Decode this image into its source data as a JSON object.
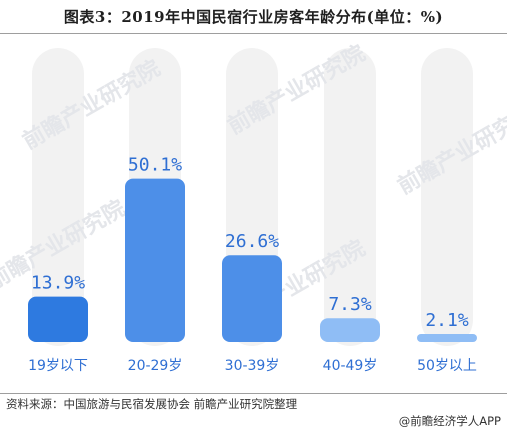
{
  "title": "图表3：2019年中国民宿行业房客年龄分布(单位：%)",
  "source_label": "资料来源：中国旅游与民宿发展协会 前瞻产业研究院整理",
  "brand_label": "@前瞻经济学人APP",
  "watermark_text": "前瞻产业研究院",
  "colors": {
    "track": "#f2f2f2",
    "bar_dark": "#2e7ae0",
    "bar_mid": "#4d8fe8",
    "bar_light": "#8fbdf5",
    "label": "#2f6fd3"
  },
  "chart_data": {
    "type": "bar",
    "categories": [
      "19岁以下",
      "20-29岁",
      "30-39岁",
      "40-49岁",
      "50岁以上"
    ],
    "values": [
      13.9,
      50.1,
      26.6,
      7.3,
      2.1
    ],
    "value_labels": [
      "13.9%",
      "50.1%",
      "26.6%",
      "7.3%",
      "2.1%"
    ],
    "bar_colors": [
      "#2e7ae0",
      "#4d8fe8",
      "#4d8fe8",
      "#8fbdf5",
      "#8fbdf5"
    ],
    "ylim": [
      0,
      100
    ],
    "grid": false,
    "legend": "none",
    "title": "图表3：2019年中国民宿行业房客年龄分布(单位：%)"
  }
}
